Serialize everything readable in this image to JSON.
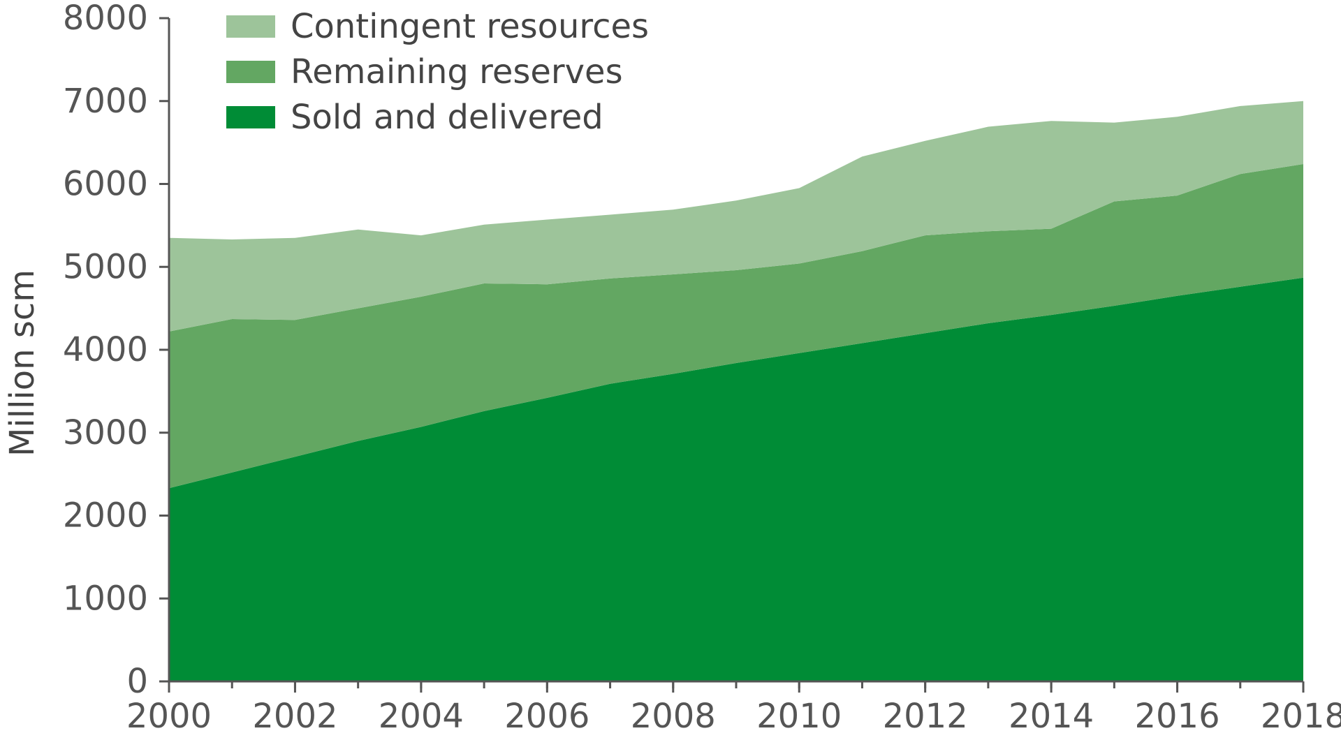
{
  "chart_data": {
    "type": "area",
    "stacked": true,
    "ylabel": "Million scm",
    "xlabel": "",
    "title": "",
    "xlim": [
      2000,
      2018
    ],
    "ylim": [
      0,
      8000
    ],
    "grid": false,
    "legend_position": "top-left",
    "x": [
      2000,
      2001,
      2002,
      2003,
      2004,
      2005,
      2006,
      2007,
      2008,
      2009,
      2010,
      2011,
      2012,
      2013,
      2014,
      2015,
      2016,
      2017,
      2018
    ],
    "x_tick_labels": [
      "2000",
      "2002",
      "2004",
      "2006",
      "2008",
      "2010",
      "2012",
      "2014",
      "2016",
      "2018"
    ],
    "y_tick_labels": [
      "0",
      "1000",
      "2000",
      "3000",
      "4000",
      "5000",
      "6000",
      "7000",
      "8000"
    ],
    "series": [
      {
        "name": "Sold and delivered",
        "color": "#008c36",
        "values": [
          2330,
          2520,
          2710,
          2900,
          3070,
          3260,
          3420,
          3590,
          3710,
          3840,
          3960,
          4080,
          4200,
          4320,
          4420,
          4530,
          4650,
          4760,
          4870
        ]
      },
      {
        "name": "Remaining reserves",
        "color": "#63a762",
        "values": [
          1890,
          1850,
          1650,
          1600,
          1570,
          1540,
          1370,
          1270,
          1200,
          1120,
          1080,
          1110,
          1180,
          1110,
          1040,
          1260,
          1210,
          1360,
          1370
        ]
      },
      {
        "name": "Contingent resources",
        "color": "#9dc49a",
        "values": [
          1130,
          960,
          990,
          950,
          740,
          710,
          780,
          770,
          780,
          840,
          910,
          1140,
          1140,
          1260,
          1300,
          950,
          950,
          820,
          760
        ]
      }
    ],
    "legend_order": [
      "Contingent resources",
      "Remaining reserves",
      "Sold and delivered"
    ]
  }
}
